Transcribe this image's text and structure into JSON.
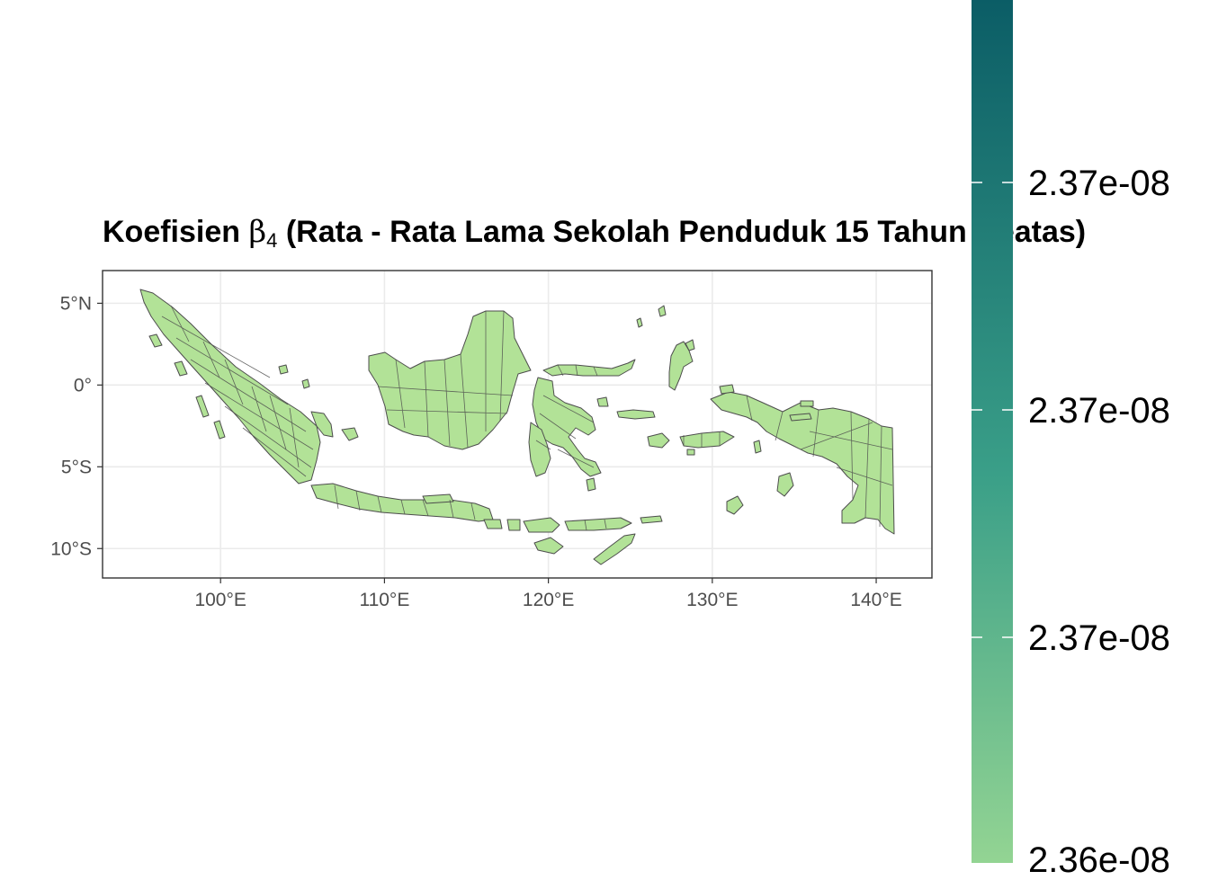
{
  "title": {
    "prefix": "Koefisien ",
    "symbol": "β",
    "subscript": "4",
    "suffix": " (Rata - Rata Lama Sekolah Penduduk 15 Tahun Keatas)"
  },
  "map": {
    "region_fill": "#b2e297",
    "border_color": "#4d4d4d",
    "panel_border": "#333333",
    "grid_color": "#ebebeb",
    "lon_range": [
      92.8,
      143.4
    ],
    "lat_range": [
      -11.8,
      7.0
    ],
    "x_ticks": [
      {
        "value": 100,
        "label": "100°E"
      },
      {
        "value": 110,
        "label": "110°E"
      },
      {
        "value": 120,
        "label": "120°E"
      },
      {
        "value": 130,
        "label": "130°E"
      },
      {
        "value": 140,
        "label": "140°E"
      }
    ],
    "y_ticks": [
      {
        "value": 5,
        "label": "5°N"
      },
      {
        "value": 0,
        "label": "0°"
      },
      {
        "value": -5,
        "label": "5°S"
      },
      {
        "value": -10,
        "label": "10°S"
      }
    ]
  },
  "legend": {
    "color_top": "#0b5d66",
    "color_mid": "#3a9f88",
    "color_bottom": "#93d493",
    "labels": [
      "2.37e-08",
      "2.37e-08",
      "2.37e-08",
      "2.36e-08"
    ]
  }
}
